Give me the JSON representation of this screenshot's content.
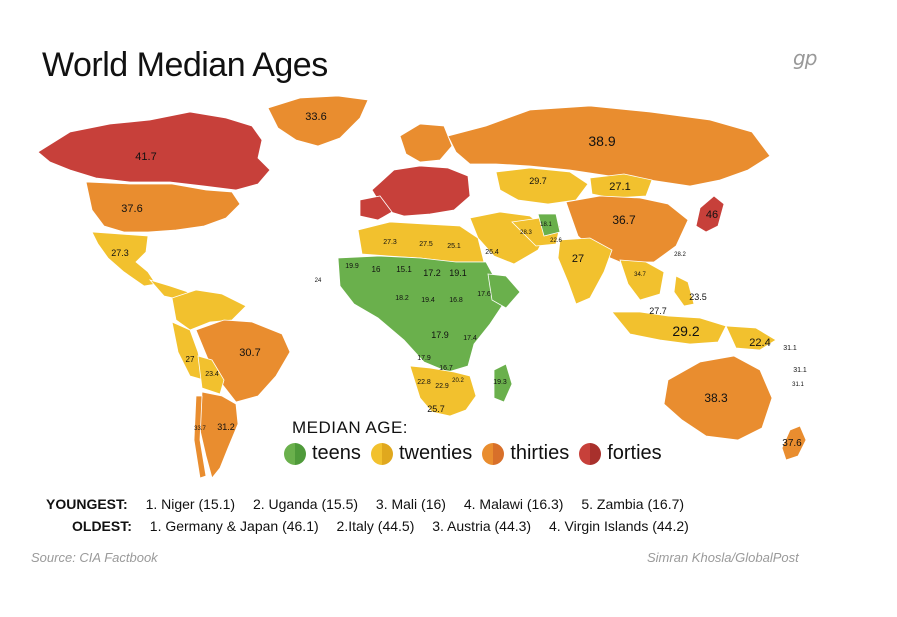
{
  "title": "World Median Ages",
  "logo_text": "gp",
  "colors": {
    "teens": "#6ab04c",
    "twenties": "#f2c12e",
    "thirties": "#e98d2f",
    "forties": "#c7403a",
    "ocean": "#ffffff"
  },
  "map_labels": {
    "greenland": "33.6",
    "canada": "41.7",
    "usa": "37.6",
    "mexico": "27.3",
    "russia": "38.9",
    "mongolia": "27.1",
    "kazakhstan": "29.7",
    "china": "36.7",
    "japan": "46",
    "india": "27",
    "indonesia": "29.2",
    "philippines": "23.5",
    "png": "22.4",
    "australia": "38.3",
    "new_zealand": "37.6",
    "brazil": "30.7",
    "argentina": "31.2",
    "bolivia": "23.4",
    "peru": "27",
    "chile": "33.7",
    "mali": "16",
    "niger": "15.1",
    "chad": "17.2",
    "sudan": "19.1",
    "algeria": "27.3",
    "libya": "27.5",
    "egypt": "25.1",
    "saudi": "26.4",
    "mauritania": "19.9",
    "nigeria": "18.2",
    "cameroon": "19.4",
    "car": "16.8",
    "ethiopia": "17.6",
    "drc": "17.9",
    "tanzania": "17.4",
    "angola": "17.9",
    "zambia": "16.7",
    "namibia": "22.8",
    "botswana": "22.9",
    "south_africa": "25.7",
    "madagascar": "19.3",
    "mozambique": "20.2",
    "pacific_1": "31.1",
    "pacific_2": "31.1",
    "pacific_3": "31.1",
    "atlantic_1": "24",
    "timor": "27.7",
    "iran": "28.3",
    "afghanistan": "18.1",
    "pakistan": "22.6",
    "thailand": "34.7",
    "vietnam": "28.2"
  },
  "legend": {
    "title": "MEDIAN AGE:",
    "items": [
      {
        "key": "teens",
        "label": "teens"
      },
      {
        "key": "twenties",
        "label": "twenties"
      },
      {
        "key": "thirties",
        "label": "thirties"
      },
      {
        "key": "forties",
        "label": "forties"
      }
    ]
  },
  "youngest": {
    "label": "YOUNGEST:",
    "entries": [
      "1. Niger (15.1)",
      "2. Uganda (15.5)",
      "3. Mali (16)",
      "4. Malawi (16.3)",
      "5. Zambia (16.7)"
    ]
  },
  "oldest": {
    "label": "OLDEST:",
    "entries": [
      "1. Germany & Japan (46.1)",
      "2.Italy (44.5)",
      "3. Austria (44.3)",
      "4. Virgin Islands (44.2)"
    ]
  },
  "source": "Source: CIA Factbook",
  "credit": "Simran Khosla/GlobalPost"
}
